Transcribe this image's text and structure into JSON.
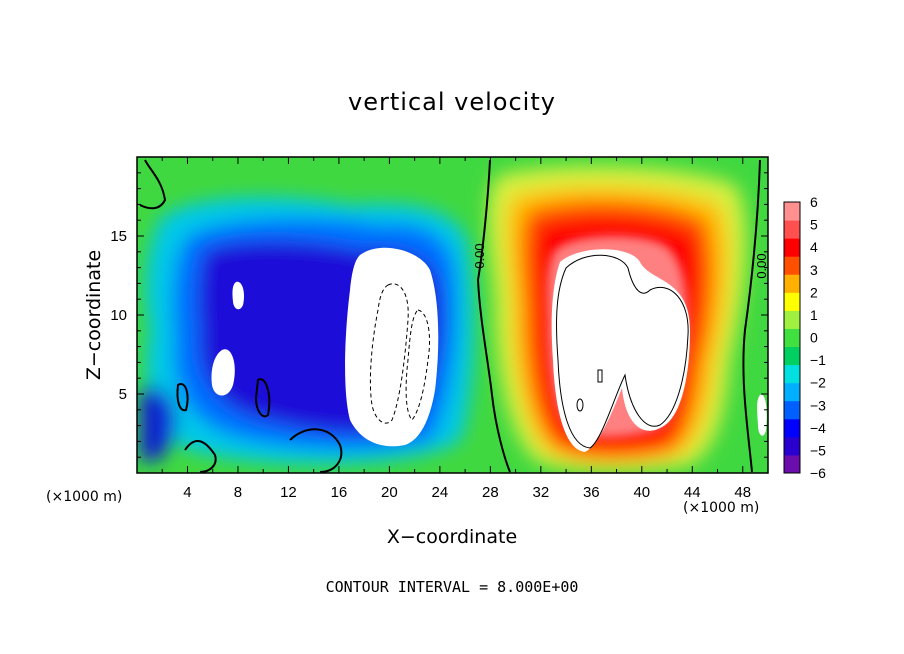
{
  "chart_data": {
    "type": "heatmap",
    "title": "vertical velocity",
    "xlabel": "X−coordinate",
    "ylabel": "Z−coordinate",
    "x_unit": "(×1000 m)",
    "xlim": [
      0,
      50
    ],
    "ylim": [
      0,
      20
    ],
    "x_ticks": [
      "4",
      "8",
      "12",
      "16",
      "20",
      "24",
      "28",
      "32",
      "36",
      "40",
      "44",
      "48"
    ],
    "y_ticks": [
      "5",
      "10",
      "15"
    ],
    "colorbar": {
      "range": [
        -6,
        6
      ],
      "ticks": [
        "6",
        "5",
        "4",
        "3",
        "2",
        "1",
        "0",
        "−1",
        "−2",
        "−3",
        "−4",
        "−5",
        "−6"
      ],
      "colors": [
        "#6a0dad",
        "#2a00d0",
        "#0000ff",
        "#0060ff",
        "#00b0ff",
        "#00e0e0",
        "#00d060",
        "#40e040",
        "#a0f040",
        "#ffff00",
        "#ffb000",
        "#ff5000",
        "#ff0000",
        "#ff5050",
        "#ff9090"
      ]
    },
    "contour_labels": [
      "0.00",
      "0.00"
    ],
    "footer": "CONTOUR INTERVAL = 8.000E+00"
  }
}
